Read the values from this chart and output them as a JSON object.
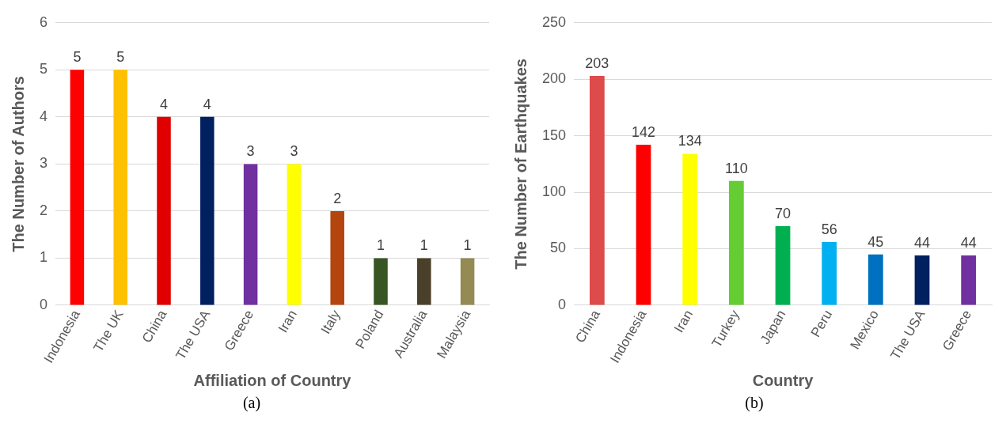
{
  "chart_data": [
    {
      "type": "bar",
      "xlabel": "Affiliation of Country",
      "ylabel": "The Number of Authors",
      "categories": [
        "Indonesia",
        "The UK",
        "China",
        "The USA",
        "Greece",
        "Iran",
        "Italy",
        "Poland",
        "Australia",
        "Malaysia"
      ],
      "values": [
        5,
        5,
        4,
        4,
        3,
        3,
        2,
        1,
        1,
        1
      ],
      "colors": [
        "#ff0000",
        "#ffc000",
        "#e00000",
        "#002060",
        "#7030a0",
        "#ffff00",
        "#b5450f",
        "#375623",
        "#4a3f28",
        "#948a54"
      ],
      "ylim": [
        0,
        6
      ],
      "yticks": [
        0,
        1,
        2,
        3,
        4,
        5,
        6
      ],
      "grid": "y",
      "data_labels": true,
      "legend": false,
      "annotations": [
        "(a)"
      ]
    },
    {
      "type": "bar",
      "xlabel": "Country",
      "ylabel": "The Number of Earthquakes",
      "categories": [
        "China",
        "Indonesia",
        "Iran",
        "Turkey",
        "Japan",
        "Peru",
        "Mexico",
        "The USA",
        "Greece"
      ],
      "values": [
        203,
        142,
        134,
        110,
        70,
        56,
        45,
        44,
        44
      ],
      "colors": [
        "#dd4b4b",
        "#ff0000",
        "#ffff00",
        "#66cc33",
        "#00b050",
        "#00b0f0",
        "#0070c0",
        "#002060",
        "#7030a0"
      ],
      "ylim": [
        0,
        250
      ],
      "yticks": [
        0,
        50,
        100,
        150,
        200,
        250
      ],
      "grid": "y",
      "data_labels": true,
      "legend": false,
      "annotations": [
        "(b)"
      ]
    }
  ]
}
